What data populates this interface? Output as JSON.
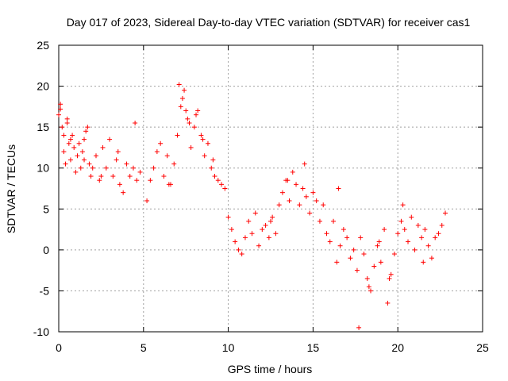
{
  "chart_data": {
    "type": "scatter",
    "title": "Day 017 of 2023, Sidereal Day-to-day VTEC variation (SDTVAR) for receiver cas1",
    "xlabel": "GPS time / hours",
    "ylabel": "SDTVAR / TECUs",
    "xlim": [
      0,
      25
    ],
    "ylim": [
      -10,
      25
    ],
    "x_ticks": [
      0,
      5,
      10,
      15,
      20,
      25
    ],
    "y_ticks": [
      -10,
      -5,
      0,
      5,
      10,
      15,
      20,
      25
    ],
    "x_tick_labels": [
      "0",
      "5",
      "10",
      "15",
      "20",
      "25"
    ],
    "y_tick_labels": [
      "-10",
      "-5",
      "0",
      "5",
      "10",
      "15",
      "20",
      "25"
    ],
    "grid": true,
    "marker": "+",
    "marker_color": "#ff0000",
    "series": [
      {
        "name": "SDTVAR",
        "x": [
          0.0,
          0.1,
          0.2,
          0.3,
          0.4,
          0.5,
          0.6,
          0.7,
          0.8,
          0.9,
          1.0,
          1.1,
          1.2,
          1.3,
          1.4,
          1.5,
          1.6,
          1.7,
          1.8,
          1.9,
          2.0,
          2.2,
          2.4,
          2.6,
          2.8,
          3.0,
          3.2,
          3.4,
          3.6,
          3.8,
          4.0,
          4.2,
          4.4,
          4.6,
          4.8,
          5.2,
          5.4,
          5.6,
          5.8,
          6.0,
          6.2,
          6.4,
          6.6,
          6.8,
          7.0,
          7.2,
          7.4,
          7.6,
          7.8,
          8.0,
          8.2,
          8.4,
          8.6,
          8.8,
          9.0,
          9.2,
          9.4,
          9.6,
          9.8,
          10.0,
          10.2,
          10.4,
          10.6,
          10.8,
          11.0,
          11.2,
          11.4,
          11.6,
          11.8,
          12.0,
          12.2,
          12.4,
          12.6,
          12.8,
          13.0,
          13.2,
          13.4,
          13.6,
          13.8,
          14.0,
          14.2,
          14.4,
          14.6,
          14.8,
          15.0,
          15.2,
          15.4,
          15.6,
          15.8,
          16.0,
          16.2,
          16.4,
          16.6,
          16.8,
          17.0,
          17.2,
          17.4,
          17.6,
          17.8,
          18.0,
          18.2,
          18.4,
          18.6,
          18.8,
          19.0,
          19.2,
          19.4,
          19.6,
          19.8,
          20.0,
          20.2,
          20.4,
          20.6,
          20.8,
          21.0,
          21.2,
          21.4,
          21.6,
          21.8,
          22.0,
          22.2,
          22.4,
          22.6,
          22.8,
          0.1,
          0.3,
          0.5,
          0.7,
          1.5,
          2.5,
          3.5,
          4.5,
          6.5,
          7.1,
          7.3,
          7.5,
          7.7,
          8.1,
          8.5,
          9.1,
          12.5,
          13.5,
          14.5,
          16.5,
          17.7,
          18.3,
          18.9,
          19.5,
          20.3,
          21.5
        ],
        "y": [
          16.5,
          17.2,
          15.0,
          12.0,
          10.5,
          15.5,
          13.0,
          11.0,
          14.0,
          12.5,
          9.5,
          11.5,
          13.0,
          10.0,
          12.0,
          11.0,
          14.5,
          15.0,
          10.5,
          9.0,
          10.0,
          11.5,
          8.5,
          12.5,
          10.0,
          13.5,
          9.0,
          11.0,
          8.0,
          7.0,
          10.5,
          9.0,
          10.0,
          8.5,
          9.5,
          6.0,
          8.5,
          10.0,
          12.0,
          13.0,
          9.0,
          11.5,
          8.0,
          10.5,
          14.0,
          17.5,
          19.5,
          16.0,
          12.5,
          15.0,
          17.0,
          14.0,
          11.5,
          13.0,
          10.0,
          9.0,
          8.5,
          8.0,
          7.5,
          4.0,
          2.5,
          1.0,
          0.0,
          -0.5,
          1.5,
          3.5,
          2.0,
          4.5,
          0.5,
          2.5,
          3.0,
          1.5,
          4.0,
          2.0,
          5.5,
          7.0,
          8.5,
          6.0,
          9.5,
          8.0,
          5.5,
          7.5,
          6.5,
          4.5,
          7.0,
          6.0,
          3.5,
          5.5,
          2.0,
          1.0,
          3.5,
          -1.5,
          0.5,
          2.5,
          1.5,
          -1.0,
          0.0,
          -2.5,
          1.5,
          -0.5,
          -3.5,
          -5.0,
          -2.0,
          0.5,
          -1.5,
          2.5,
          -6.5,
          -3.0,
          -0.5,
          2.0,
          3.5,
          2.5,
          1.0,
          4.0,
          0.0,
          3.0,
          1.5,
          2.5,
          0.5,
          -1.0,
          1.5,
          2.0,
          3.0,
          4.5,
          17.8,
          14.0,
          16.0,
          13.5,
          13.5,
          9.0,
          12.0,
          15.5,
          8.0,
          20.2,
          18.5,
          17.0,
          15.5,
          16.5,
          13.5,
          11.0,
          3.5,
          8.5,
          10.5,
          7.5,
          -9.5,
          -4.5,
          1.0,
          -3.5,
          5.5,
          -1.5
        ]
      }
    ]
  }
}
